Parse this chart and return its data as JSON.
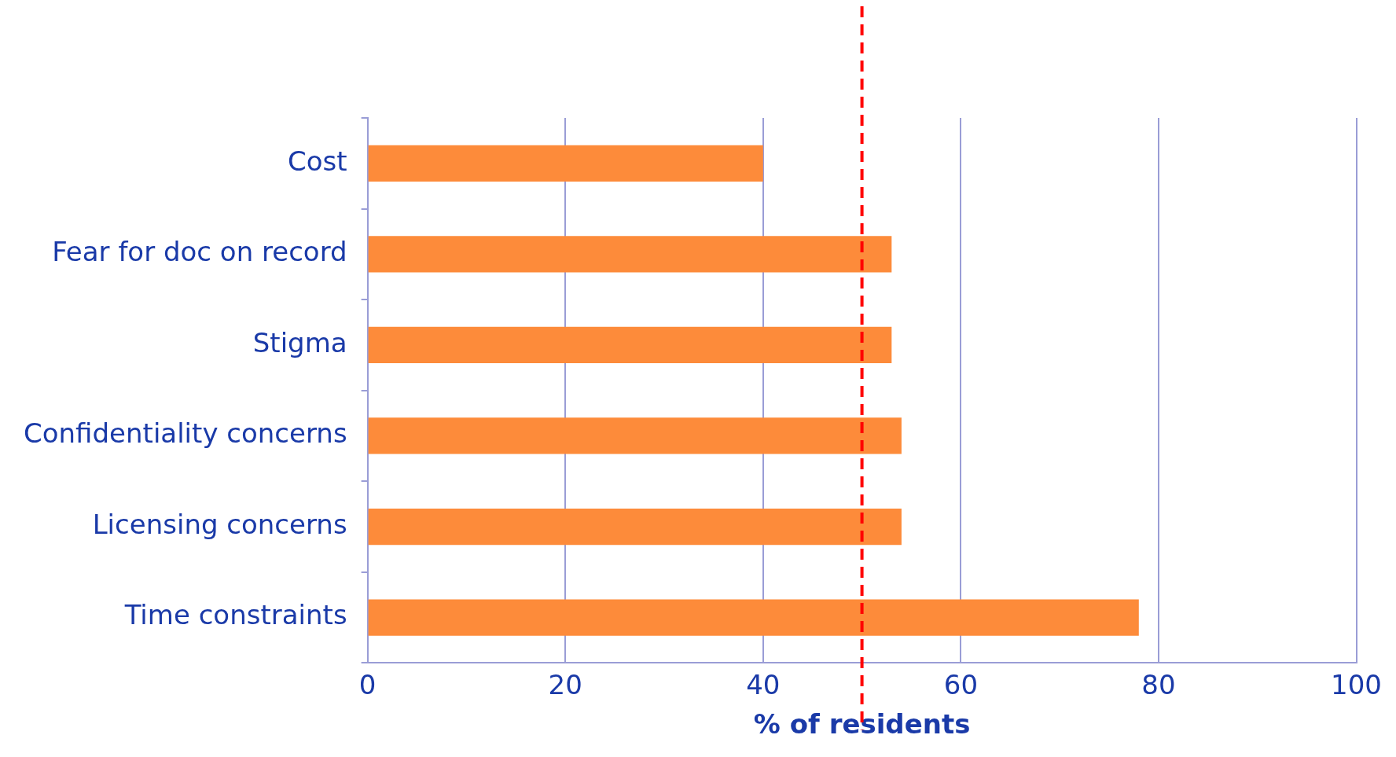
{
  "chart_data": {
    "type": "bar",
    "orientation": "horizontal",
    "xlabel": "% of residents",
    "categories": [
      "Cost",
      "Fear for doc on record",
      "Stigma",
      "Confidentiality concerns",
      "Licensing concerns",
      "Time constraints"
    ],
    "values": [
      40,
      53,
      53,
      54,
      54,
      78
    ],
    "color": "#fd8b3a",
    "xlim": [
      0,
      100
    ],
    "xticks": [
      0,
      20,
      40,
      60,
      80,
      100
    ],
    "grid": "x",
    "legend": false,
    "ref_lines": [
      {
        "axis": "x",
        "value": 50,
        "color": "#ff0000",
        "line_style": "dashed"
      }
    ]
  }
}
